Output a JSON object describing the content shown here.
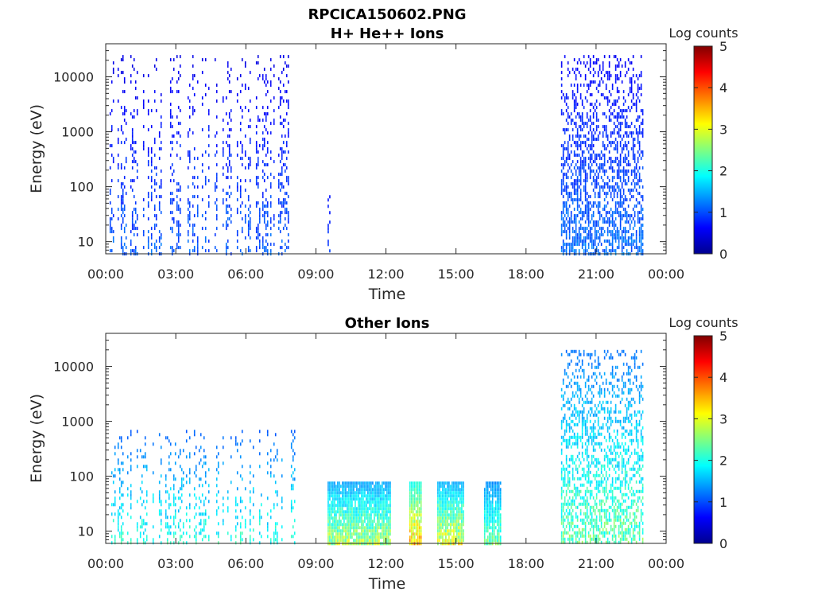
{
  "figure": {
    "file_title": "RPCICA150602.PNG"
  },
  "chart_data": [
    {
      "type": "heatmap",
      "title": "H+ He++ Ions",
      "xlabel": "Time",
      "ylabel": "Energy (eV)",
      "x_ticks": [
        "00:00",
        "03:00",
        "06:00",
        "09:00",
        "12:00",
        "15:00",
        "18:00",
        "21:00",
        "00:00"
      ],
      "x_range_hours": [
        0,
        24
      ],
      "y_ticks": [
        "10",
        "100",
        "1000",
        "10000"
      ],
      "y_scale": "log",
      "y_range_eV": [
        6,
        40000
      ],
      "colorbar": {
        "label": "Log counts",
        "ticks": [
          "0",
          "1",
          "2",
          "3",
          "4",
          "5"
        ],
        "range": [
          0,
          5
        ],
        "colormap": "jet"
      },
      "data_blocks": [
        {
          "start_hour": 0.1,
          "end_hour": 8.1,
          "emin_eV": 6,
          "emax_eV": 25000,
          "level_min": 0.3,
          "level_max": 1.3,
          "pattern": "striped"
        },
        {
          "start_hour": 9.5,
          "end_hour": 9.6,
          "emin_eV": 6,
          "emax_eV": 80,
          "level_min": 0.6,
          "level_max": 1.0,
          "pattern": "spike"
        },
        {
          "start_hour": 19.5,
          "end_hour": 23.0,
          "emin_eV": 6,
          "emax_eV": 25000,
          "level_min": 0.4,
          "level_max": 1.4,
          "pattern": "dense"
        }
      ]
    },
    {
      "type": "heatmap",
      "title": "Other Ions",
      "xlabel": "Time",
      "ylabel": "Energy (eV)",
      "x_ticks": [
        "00:00",
        "03:00",
        "06:00",
        "09:00",
        "12:00",
        "15:00",
        "18:00",
        "21:00",
        "00:00"
      ],
      "x_range_hours": [
        0,
        24
      ],
      "y_ticks": [
        "10",
        "100",
        "1000",
        "10000"
      ],
      "y_scale": "log",
      "y_range_eV": [
        6,
        40000
      ],
      "colorbar": {
        "label": "Log counts",
        "ticks": [
          "0",
          "1",
          "2",
          "3",
          "4",
          "5"
        ],
        "range": [
          0,
          5
        ],
        "colormap": "jet"
      },
      "data_blocks": [
        {
          "start_hour": 0.1,
          "end_hour": 8.1,
          "emin_eV": 6,
          "emax_eV": 700,
          "level_min": 0.8,
          "level_max": 2.4,
          "pattern": "striped"
        },
        {
          "start_hour": 9.5,
          "end_hour": 12.2,
          "emin_eV": 6,
          "emax_eV": 80,
          "level_min": 1.0,
          "level_max": 3.2,
          "pattern": "block"
        },
        {
          "start_hour": 13.0,
          "end_hour": 13.5,
          "emin_eV": 6,
          "emax_eV": 80,
          "level_min": 1.5,
          "level_max": 4.0,
          "pattern": "block"
        },
        {
          "start_hour": 14.2,
          "end_hour": 15.3,
          "emin_eV": 6,
          "emax_eV": 80,
          "level_min": 1.0,
          "level_max": 3.6,
          "pattern": "block"
        },
        {
          "start_hour": 16.2,
          "end_hour": 16.9,
          "emin_eV": 6,
          "emax_eV": 80,
          "level_min": 1.0,
          "level_max": 2.8,
          "pattern": "block"
        },
        {
          "start_hour": 19.5,
          "end_hour": 23.0,
          "emin_eV": 6,
          "emax_eV": 20000,
          "level_min": 0.8,
          "level_max": 2.8,
          "pattern": "dense"
        }
      ]
    }
  ]
}
